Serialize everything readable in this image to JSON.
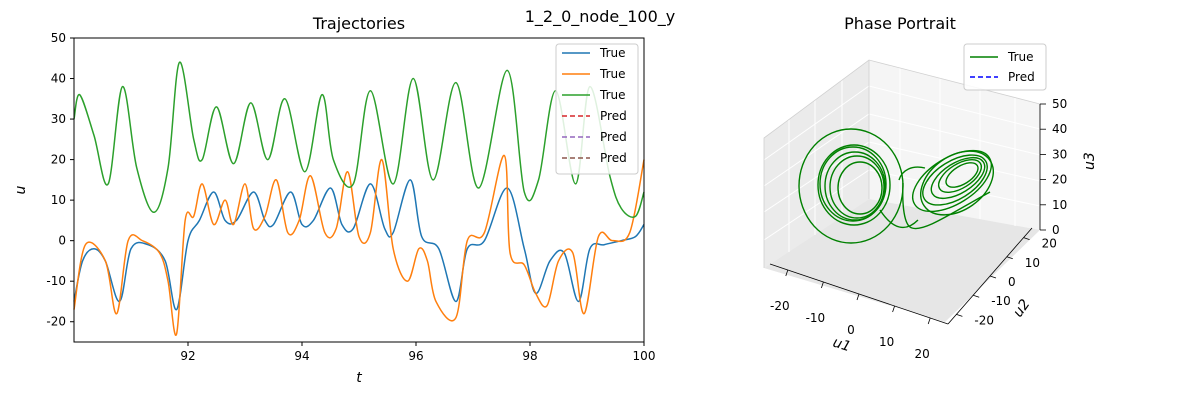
{
  "figure": {
    "suptitle": "1_2_0_node_100_y"
  },
  "chart_data": [
    {
      "type": "line",
      "title": "Trajectories",
      "xlabel": "t",
      "ylabel": "u",
      "xlim": [
        90,
        100
      ],
      "ylim": [
        -25,
        50
      ],
      "xticks": [
        92,
        94,
        96,
        98,
        100
      ],
      "yticks": [
        -20,
        -10,
        0,
        10,
        20,
        30,
        40,
        50
      ],
      "grid": false,
      "legend_position": "top-right",
      "legend": [
        {
          "label": "True",
          "color": "#1f77b4",
          "style": "solid"
        },
        {
          "label": "True",
          "color": "#ff7f0e",
          "style": "solid"
        },
        {
          "label": "True",
          "color": "#2ca02c",
          "style": "solid"
        },
        {
          "label": "Pred",
          "color": "#d62728",
          "style": "dashed"
        },
        {
          "label": "Pred",
          "color": "#9467bd",
          "style": "dashed"
        },
        {
          "label": "Pred",
          "color": "#8c564b",
          "style": "dashed"
        }
      ],
      "series": [
        {
          "color": "#1f77b4",
          "x": [
            90.0,
            90.15,
            90.35,
            90.55,
            90.8,
            91.0,
            91.3,
            91.6,
            91.8,
            92.0,
            92.2,
            92.45,
            92.65,
            92.85,
            93.15,
            93.35,
            93.5,
            93.8,
            94.0,
            94.2,
            94.5,
            94.7,
            94.9,
            95.2,
            95.45,
            95.6,
            95.9,
            96.1,
            96.4,
            96.7,
            96.9,
            97.2,
            97.6,
            97.9,
            98.1,
            98.35,
            98.6,
            98.85,
            99.05,
            99.3,
            99.6,
            99.85,
            100.0
          ],
          "y": [
            -15,
            -5,
            -2,
            -5,
            -15,
            -2,
            -1,
            -5,
            -17,
            0,
            5,
            12,
            5,
            5,
            12,
            5,
            4,
            12,
            4,
            5,
            13,
            4,
            3,
            14,
            3,
            2,
            15,
            1,
            -2,
            -15,
            -2,
            0,
            13,
            -2,
            -13,
            -5,
            -3,
            -15,
            -2,
            -1,
            0,
            1,
            4
          ]
        },
        {
          "color": "#ff7f0e",
          "x": [
            90.0,
            90.2,
            90.55,
            90.75,
            90.95,
            91.2,
            91.5,
            91.65,
            91.8,
            91.95,
            92.1,
            92.25,
            92.45,
            92.65,
            92.8,
            93.0,
            93.15,
            93.35,
            93.55,
            93.75,
            93.95,
            94.15,
            94.4,
            94.6,
            94.8,
            95.0,
            95.2,
            95.4,
            95.6,
            95.85,
            96.05,
            96.2,
            96.35,
            96.7,
            96.9,
            97.2,
            97.55,
            97.65,
            97.9,
            98.1,
            98.3,
            98.5,
            98.75,
            98.95,
            99.2,
            99.45,
            99.75,
            100.0
          ],
          "y": [
            -17,
            -1,
            -5,
            -18,
            0,
            0,
            -3,
            -10,
            -23,
            5,
            6,
            14,
            4,
            10,
            4,
            14,
            3,
            6,
            15,
            2,
            5,
            16,
            2,
            3,
            17,
            1,
            2,
            20,
            -2,
            -10,
            -2,
            -5,
            -15,
            -19,
            0,
            2,
            21,
            -3,
            -6,
            -13,
            -16,
            -5,
            -3,
            -18,
            1,
            0,
            2,
            20
          ]
        },
        {
          "color": "#2ca02c",
          "x": [
            90.0,
            90.1,
            90.35,
            90.6,
            90.85,
            91.1,
            91.4,
            91.65,
            91.85,
            92.1,
            92.25,
            92.5,
            92.8,
            93.1,
            93.4,
            93.7,
            94.05,
            94.35,
            94.55,
            94.9,
            95.2,
            95.6,
            95.95,
            96.3,
            96.7,
            97.1,
            97.6,
            97.9,
            98.15,
            98.45,
            98.8,
            99.05,
            99.4,
            99.6,
            99.85,
            100.0
          ],
          "y": [
            30,
            36,
            26,
            14,
            38,
            18,
            7,
            18,
            44,
            25,
            20,
            33,
            19,
            34,
            20,
            35,
            17,
            36,
            20,
            14,
            37,
            14,
            40,
            15,
            39,
            13,
            42,
            12,
            15,
            37,
            14,
            38,
            16,
            8,
            6,
            12
          ]
        }
      ]
    },
    {
      "type": "line3d",
      "title": "Phase Portrait",
      "xlabel": "u1",
      "ylabel": "u2",
      "zlabel": "u3",
      "xlim": [
        -25,
        25
      ],
      "ylim": [
        -25,
        25
      ],
      "zlim": [
        0,
        50
      ],
      "xticks": [
        -20,
        -10,
        0,
        10,
        20
      ],
      "yticks": [
        -20,
        -10,
        0,
        10,
        20
      ],
      "zticks": [
        0,
        10,
        20,
        30,
        40,
        50
      ],
      "legend_position": "top-right",
      "legend": [
        {
          "label": "True",
          "color": "#008000",
          "style": "solid"
        },
        {
          "label": "Pred",
          "color": "#0000ff",
          "style": "dashed"
        }
      ]
    }
  ]
}
